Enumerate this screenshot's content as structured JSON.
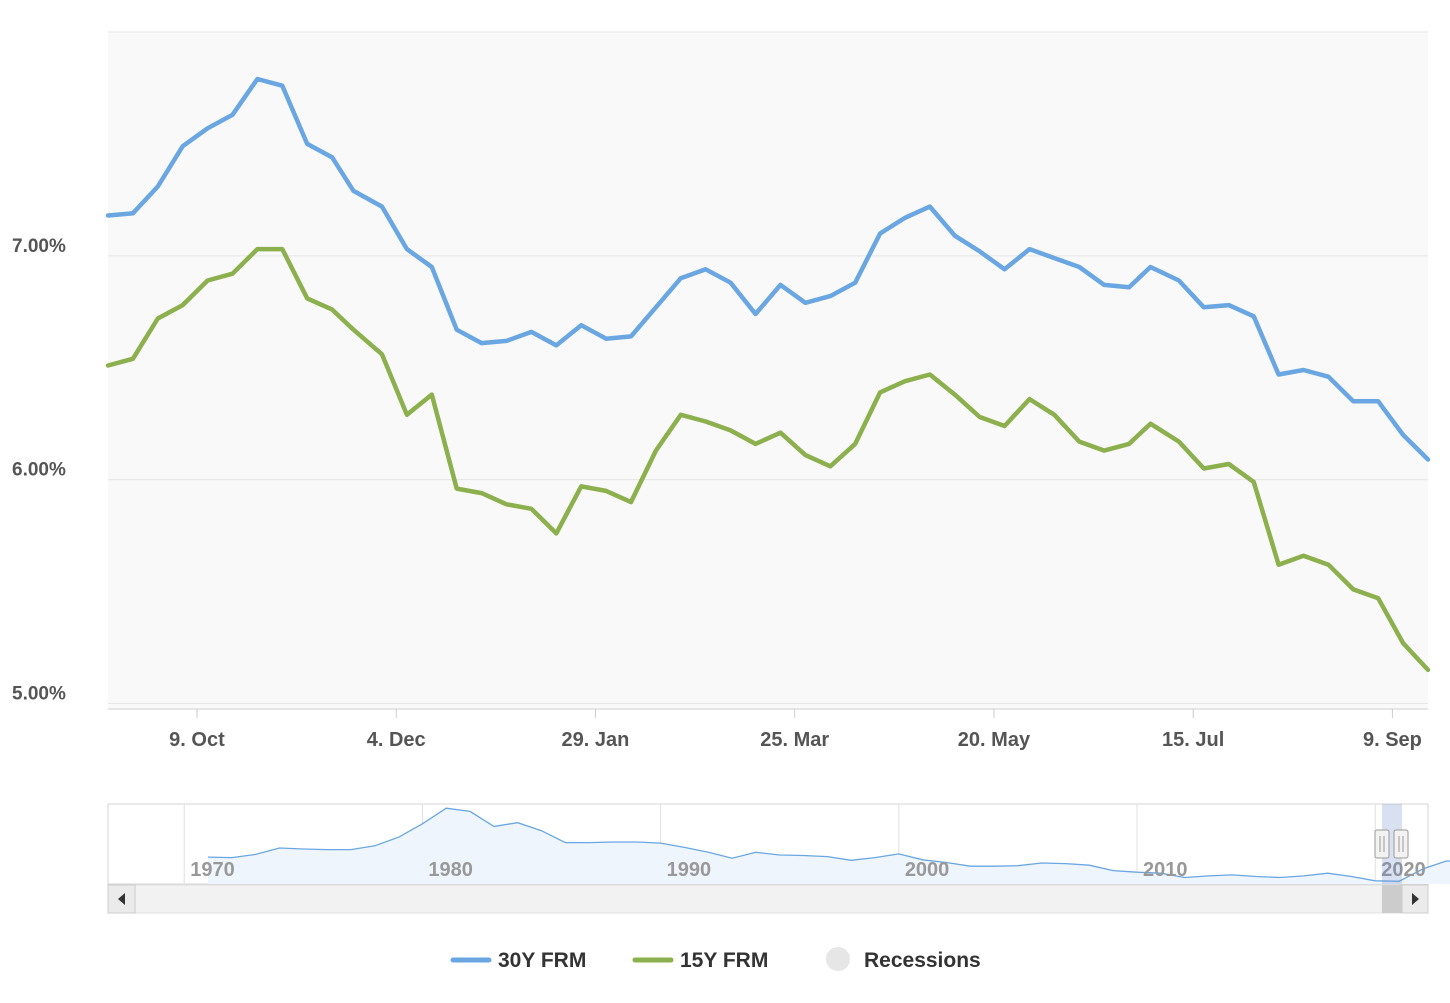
{
  "chart_data": {
    "type": "line",
    "title": "",
    "xlabel": "",
    "ylabel": "",
    "ylim": [
      4.98,
      8.0
    ],
    "y_ticks": [
      {
        "value": 5.0,
        "label": "5.00%"
      },
      {
        "value": 6.0,
        "label": "6.00%"
      },
      {
        "value": 7.0,
        "label": "7.00%"
      }
    ],
    "x_ticks": [
      "9. Oct",
      "4. Dec",
      "29. Jan",
      "25. Mar",
      "20. May",
      "15. Jul",
      "9. Sep"
    ],
    "x": [
      "2023-09-14",
      "2023-09-21",
      "2023-09-28",
      "2023-10-05",
      "2023-10-12",
      "2023-10-19",
      "2023-10-26",
      "2023-11-02",
      "2023-11-09",
      "2023-11-16",
      "2023-11-22",
      "2023-11-30",
      "2023-12-07",
      "2023-12-14",
      "2023-12-21",
      "2023-12-28",
      "2024-01-04",
      "2024-01-11",
      "2024-01-18",
      "2024-01-25",
      "2024-02-01",
      "2024-02-08",
      "2024-02-15",
      "2024-02-22",
      "2024-02-29",
      "2024-03-07",
      "2024-03-14",
      "2024-03-21",
      "2024-03-28",
      "2024-04-04",
      "2024-04-11",
      "2024-04-18",
      "2024-04-25",
      "2024-05-02",
      "2024-05-09",
      "2024-05-16",
      "2024-05-23",
      "2024-05-30",
      "2024-06-06",
      "2024-06-13",
      "2024-06-20",
      "2024-06-27",
      "2024-07-03",
      "2024-07-11",
      "2024-07-18",
      "2024-07-25",
      "2024-08-01",
      "2024-08-08",
      "2024-08-15",
      "2024-08-22",
      "2024-08-29",
      "2024-09-05",
      "2024-09-12",
      "2024-09-19"
    ],
    "series": [
      {
        "name": "30Y FRM",
        "color": "#6aa7e2",
        "values": [
          7.18,
          7.19,
          7.31,
          7.49,
          7.57,
          7.63,
          7.79,
          7.76,
          7.5,
          7.44,
          7.29,
          7.22,
          7.03,
          6.95,
          6.67,
          6.61,
          6.62,
          6.66,
          6.6,
          6.69,
          6.63,
          6.64,
          6.77,
          6.9,
          6.94,
          6.88,
          6.74,
          6.87,
          6.79,
          6.82,
          6.88,
          7.1,
          7.17,
          7.22,
          7.09,
          7.02,
          6.94,
          7.03,
          6.99,
          6.95,
          6.87,
          6.86,
          6.95,
          6.89,
          6.77,
          6.78,
          6.73,
          6.47,
          6.49,
          6.46,
          6.35,
          6.35,
          6.2,
          6.09
        ]
      },
      {
        "name": "15Y FRM",
        "color": "#8cb04d",
        "values": [
          6.51,
          6.54,
          6.72,
          6.78,
          6.89,
          6.92,
          7.03,
          7.03,
          6.81,
          6.76,
          6.67,
          6.56,
          6.29,
          6.38,
          5.96,
          5.94,
          5.89,
          5.87,
          5.76,
          5.97,
          5.95,
          5.9,
          6.13,
          6.29,
          6.26,
          6.22,
          6.16,
          6.21,
          6.11,
          6.06,
          6.16,
          6.39,
          6.44,
          6.47,
          6.38,
          6.28,
          6.24,
          6.36,
          6.29,
          6.17,
          6.13,
          6.16,
          6.25,
          6.17,
          6.05,
          6.07,
          5.99,
          5.62,
          5.66,
          5.62,
          5.51,
          5.47,
          5.27,
          5.15
        ]
      }
    ],
    "legend": {
      "placement": "bottom-center",
      "items": [
        {
          "label": "30Y FRM",
          "color": "#6aa7e2"
        },
        {
          "label": "15Y FRM",
          "color": "#8cb04d"
        },
        {
          "label": "Recessions",
          "color": "#e6e6e6"
        }
      ]
    },
    "grid": true,
    "navigator": {
      "ticks": [
        "1970",
        "1980",
        "1990",
        "2000",
        "2010",
        "2020"
      ],
      "series_color": "#6aa7e2",
      "years": [
        1971,
        1972,
        1973,
        1974,
        1975,
        1976,
        1977,
        1978,
        1979,
        1980,
        1981,
        1982,
        1983,
        1984,
        1985,
        1986,
        1987,
        1988,
        1989,
        1990,
        1991,
        1992,
        1993,
        1994,
        1995,
        1996,
        1997,
        1998,
        1999,
        2000,
        2001,
        2002,
        2003,
        2004,
        2005,
        2006,
        2007,
        2008,
        2009,
        2010,
        2011,
        2012,
        2013,
        2014,
        2015,
        2016,
        2017,
        2018,
        2019,
        2020,
        2021,
        2022,
        2023,
        2024
      ],
      "values": [
        7.5,
        7.4,
        8.0,
        9.2,
        9.0,
        8.9,
        8.9,
        9.6,
        11.2,
        13.7,
        16.6,
        16.0,
        13.2,
        13.9,
        12.4,
        10.2,
        10.2,
        10.3,
        10.3,
        10.1,
        9.3,
        8.4,
        7.3,
        8.4,
        7.9,
        7.8,
        7.6,
        6.9,
        7.4,
        8.1,
        7.0,
        6.5,
        5.8,
        5.8,
        5.9,
        6.4,
        6.3,
        6.0,
        5.0,
        4.7,
        4.5,
        3.7,
        4.0,
        4.2,
        3.9,
        3.7,
        4.0,
        4.5,
        3.9,
        3.1,
        3.0,
        5.3,
        6.8,
        6.5
      ]
    }
  }
}
